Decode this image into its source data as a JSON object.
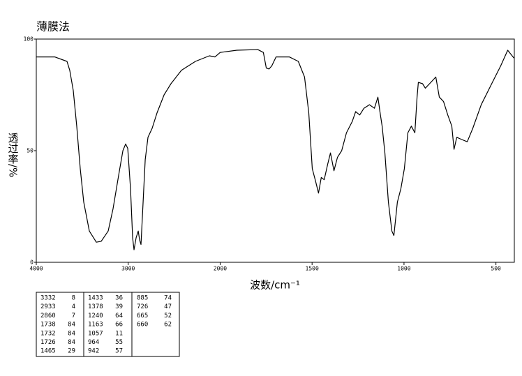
{
  "chart_data": {
    "type": "line",
    "title": "薄膜法",
    "xlabel": "波数/cm⁻¹",
    "ylabel": "透过率/%",
    "xlim": [
      4000,
      400
    ],
    "x_break": 2000,
    "ylim": [
      0,
      100
    ],
    "xticks": [
      4000,
      3000,
      2000,
      1500,
      1000,
      500
    ],
    "yticks": [
      0,
      50,
      100
    ],
    "grid": false,
    "x": [
      4000,
      3800,
      3666,
      3636,
      3598,
      3560,
      3522,
      3484,
      3423,
      3347,
      3294,
      3218,
      3165,
      3104,
      3058,
      3028,
      3005,
      2975,
      2952,
      2937,
      2914,
      2891,
      2876,
      2861,
      2838,
      2815,
      2785,
      2740,
      2686,
      2610,
      2535,
      2421,
      2269,
      2117,
      2056,
      2000,
      1909,
      1795,
      1765,
      1749,
      1734,
      1719,
      1696,
      1624,
      1575,
      1541,
      1518,
      1499,
      1480,
      1465,
      1450,
      1434,
      1415,
      1400,
      1381,
      1362,
      1339,
      1313,
      1282,
      1263,
      1241,
      1218,
      1188,
      1161,
      1142,
      1131,
      1119,
      1104,
      1085,
      1066,
      1055,
      1036,
      1017,
      998,
      979,
      960,
      941,
      929,
      922,
      899,
      884,
      861,
      827,
      808,
      785,
      762,
      740,
      728,
      713,
      686,
      656,
      626,
      580,
      523,
      474,
      436,
      402
    ],
    "series": [
      {
        "color": "#000000",
        "values": [
          92,
          92,
          90,
          86,
          77,
          61,
          42,
          27,
          14,
          9,
          9.4,
          14,
          24,
          39,
          50,
          53,
          51,
          33,
          11,
          5.6,
          11,
          14,
          10,
          8,
          27,
          46,
          56,
          60,
          67,
          75,
          80,
          86,
          90,
          92.5,
          92,
          94,
          95,
          95.3,
          94,
          87,
          86.6,
          88,
          92,
          92,
          90,
          83,
          67,
          42,
          36,
          31,
          38,
          37,
          44,
          49,
          41,
          47,
          50,
          58,
          63,
          67.5,
          66,
          69,
          70.6,
          69,
          74,
          67.5,
          61,
          49,
          27,
          14,
          12,
          27,
          33,
          42,
          58,
          61,
          58,
          74,
          80.6,
          80,
          78,
          80,
          83,
          74,
          72,
          66,
          61,
          50.6,
          56,
          55,
          54,
          60,
          70.6,
          80,
          88,
          95,
          91.5
        ]
      }
    ]
  },
  "peak_table": {
    "columns": [
      [
        [
          3332,
          8
        ],
        [
          2933,
          4
        ],
        [
          2860,
          7
        ],
        [
          1738,
          84
        ],
        [
          1732,
          84
        ],
        [
          1726,
          84
        ],
        [
          1465,
          29
        ]
      ],
      [
        [
          1433,
          36
        ],
        [
          1378,
          39
        ],
        [
          1240,
          64
        ],
        [
          1163,
          66
        ],
        [
          1057,
          11
        ],
        [
          964,
          55
        ],
        [
          942,
          57
        ]
      ],
      [
        [
          885,
          74
        ],
        [
          726,
          47
        ],
        [
          665,
          52
        ],
        [
          660,
          62
        ]
      ]
    ]
  }
}
